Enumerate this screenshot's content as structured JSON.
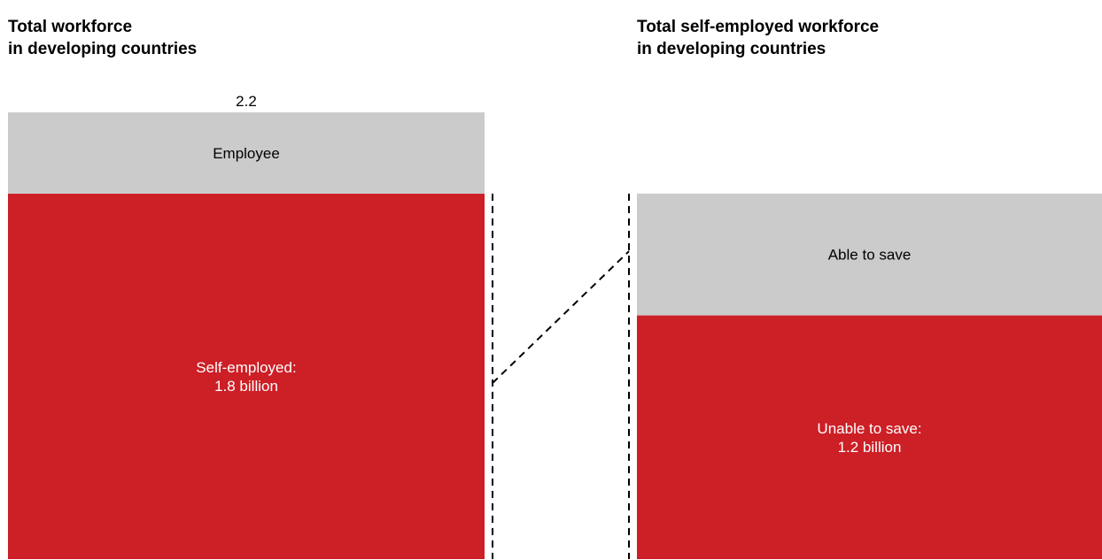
{
  "chart_data": [
    {
      "type": "bar",
      "stacked": true,
      "title": "Total workforce\nin developing countries",
      "total_label": "2.2",
      "total": 2.2,
      "segments": [
        {
          "label": "Self-employed:\n1.8 billion",
          "value": 1.8,
          "color": "#cc1f26",
          "text_color": "#ffffff"
        },
        {
          "label": "Employee",
          "value": 0.4,
          "color": "#cbcbcb",
          "text_color": "#000000"
        }
      ]
    },
    {
      "type": "bar",
      "stacked": true,
      "title": "Total self-employed workforce\nin developing countries",
      "total": 1.8,
      "segments": [
        {
          "label": "Unable to save:\n1.2 billion",
          "value": 1.2,
          "color": "#cc1f26",
          "text_color": "#ffffff"
        },
        {
          "label": "Able to save",
          "value": 0.6,
          "color": "#cbcbcb",
          "text_color": "#000000"
        }
      ]
    }
  ]
}
